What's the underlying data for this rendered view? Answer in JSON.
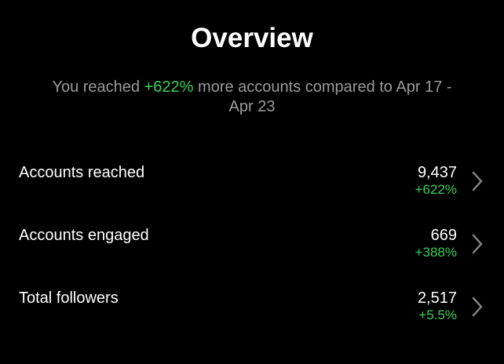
{
  "header": {
    "title": "Overview",
    "subtitle": {
      "before": "You reached",
      "highlight": "+622%",
      "after": "more accounts compared to Apr 17 - Apr 23"
    }
  },
  "rows": [
    {
      "label": "Accounts reached",
      "value": "9,437",
      "change": "+622%"
    },
    {
      "label": "Accounts engaged",
      "value": "669",
      "change": "+388%"
    },
    {
      "label": "Total followers",
      "value": "2,517",
      "change": "+5.5%"
    }
  ]
}
